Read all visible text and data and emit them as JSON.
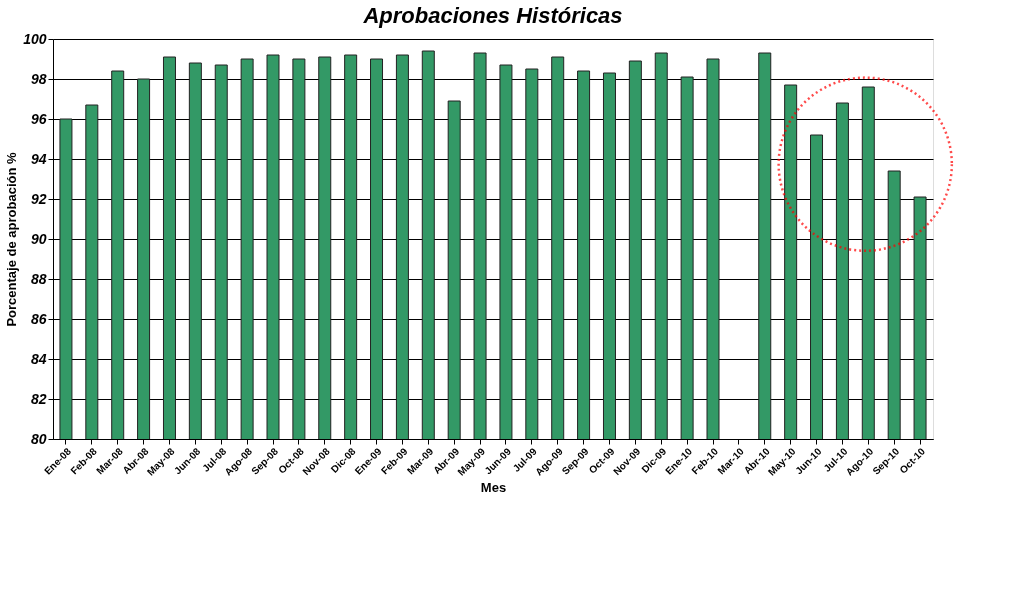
{
  "chart_data": {
    "type": "bar",
    "title": "Aprobaciones Históricas",
    "xlabel": "Mes",
    "ylabel": "Porcentaje de aprobación %",
    "categories": [
      "Ene-08",
      "Feb-08",
      "Mar-08",
      "Abr-08",
      "May-08",
      "Jun-08",
      "Jul-08",
      "Ago-08",
      "Sep-08",
      "Oct-08",
      "Nov-08",
      "Dic-08",
      "Ene-09",
      "Feb-09",
      "Mar-09",
      "Abr-09",
      "May-09",
      "Jun-09",
      "Jul-09",
      "Ago-09",
      "Sep-09",
      "Oct-09",
      "Nov-09",
      "Dic-09",
      "Ene-10",
      "Feb-10",
      "Mar-10",
      "Abr-10",
      "May-10",
      "Jun-10",
      "Jul-10",
      "Ago-10",
      "Sep-10",
      "Oct-10"
    ],
    "values": [
      96.0,
      96.7,
      98.4,
      98.0,
      99.1,
      98.8,
      98.7,
      99.0,
      99.2,
      99.0,
      99.1,
      99.2,
      99.0,
      99.2,
      99.4,
      96.9,
      99.3,
      98.7,
      98.5,
      99.1,
      98.4,
      98.3,
      98.9,
      99.3,
      98.1,
      99.0,
      null,
      99.3,
      97.7,
      95.2,
      96.8,
      97.6,
      93.4,
      92.1
    ],
    "color": "#339966",
    "ylim": [
      80,
      100
    ],
    "yticks": [
      80,
      82,
      84,
      86,
      88,
      90,
      92,
      94,
      96,
      98,
      100
    ],
    "grid": "y"
  }
}
